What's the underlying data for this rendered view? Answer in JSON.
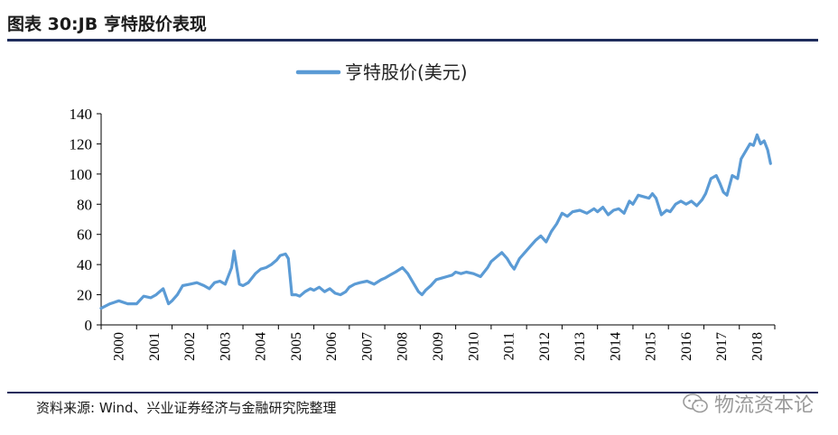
{
  "header": {
    "title": "图表 30:JB 亨特股价表现"
  },
  "footer": {
    "source": "资料来源: Wind、兴业证券经济与金融研究院整理"
  },
  "watermark": {
    "text": "物流资本论",
    "icon": "wechat-icon"
  },
  "chart_data": {
    "type": "line",
    "title": "",
    "xlabel": "",
    "ylabel": "",
    "ylim": [
      0,
      140
    ],
    "yticks": [
      0,
      20,
      40,
      60,
      80,
      100,
      120,
      140
    ],
    "xlim": [
      2000,
      2019
    ],
    "xticks": [
      "2000",
      "2001",
      "2002",
      "2003",
      "2004",
      "2005",
      "2006",
      "2007",
      "2008",
      "2009",
      "2010",
      "2011",
      "2012",
      "2013",
      "2014",
      "2015",
      "2016",
      "2017",
      "2018"
    ],
    "legend_position": "top-center",
    "grid": false,
    "colors": {
      "series": "#5b9bd5",
      "axis": "#000000"
    },
    "series": [
      {
        "name": "亨特股价(美元)",
        "x": [
          2000.0,
          2000.25,
          2000.5,
          2000.75,
          2001.0,
          2001.2,
          2001.4,
          2001.55,
          2001.65,
          2001.75,
          2001.9,
          2002.0,
          2002.15,
          2002.3,
          2002.5,
          2002.7,
          2002.9,
          2003.05,
          2003.2,
          2003.35,
          2003.5,
          2003.6,
          2003.68,
          2003.75,
          2003.9,
          2004.0,
          2004.15,
          2004.35,
          2004.5,
          2004.65,
          2004.8,
          2004.95,
          2005.05,
          2005.2,
          2005.28,
          2005.38,
          2005.5,
          2005.6,
          2005.75,
          2005.9,
          2006.0,
          2006.15,
          2006.3,
          2006.45,
          2006.6,
          2006.75,
          2006.9,
          2007.0,
          2007.15,
          2007.3,
          2007.5,
          2007.7,
          2007.9,
          2008.0,
          2008.15,
          2008.3,
          2008.5,
          2008.65,
          2008.8,
          2008.95,
          2009.05,
          2009.15,
          2009.3,
          2009.45,
          2009.6,
          2009.75,
          2009.9,
          2010.0,
          2010.15,
          2010.3,
          2010.5,
          2010.7,
          2010.9,
          2011.0,
          2011.15,
          2011.3,
          2011.45,
          2011.55,
          2011.65,
          2011.8,
          2011.95,
          2012.1,
          2012.25,
          2012.4,
          2012.55,
          2012.7,
          2012.85,
          2013.0,
          2013.15,
          2013.3,
          2013.5,
          2013.7,
          2013.9,
          2014.0,
          2014.15,
          2014.3,
          2014.45,
          2014.6,
          2014.75,
          2014.9,
          2015.0,
          2015.15,
          2015.3,
          2015.45,
          2015.55,
          2015.65,
          2015.8,
          2015.95,
          2016.05,
          2016.2,
          2016.35,
          2016.5,
          2016.65,
          2016.8,
          2016.95,
          2017.05,
          2017.2,
          2017.35,
          2017.45,
          2017.55,
          2017.65,
          2017.8,
          2017.95,
          2018.05,
          2018.2,
          2018.3,
          2018.4,
          2018.5,
          2018.6,
          2018.7,
          2018.8,
          2018.88
        ],
        "y": [
          11,
          14,
          16,
          14,
          14,
          19,
          18,
          20,
          22,
          24,
          14,
          16,
          20,
          26,
          27,
          28,
          26,
          24,
          28,
          29,
          27,
          33,
          38,
          49,
          27,
          26,
          28,
          34,
          37,
          38,
          40,
          43,
          46,
          47,
          44,
          20,
          20,
          19,
          22,
          24,
          23,
          25,
          22,
          24,
          21,
          20,
          22,
          25,
          27,
          28,
          29,
          27,
          30,
          31,
          33,
          35,
          38,
          34,
          28,
          22,
          20,
          23,
          26,
          30,
          31,
          32,
          33,
          35,
          34,
          35,
          34,
          32,
          38,
          42,
          45,
          48,
          44,
          40,
          37,
          44,
          48,
          52,
          56,
          59,
          55,
          62,
          67,
          74,
          72,
          75,
          76,
          74,
          77,
          75,
          78,
          73,
          76,
          77,
          74,
          82,
          80,
          86,
          85,
          84,
          87,
          84,
          73,
          76,
          75,
          80,
          82,
          80,
          82,
          79,
          83,
          87,
          97,
          99,
          94,
          88,
          86,
          99,
          97,
          110,
          116,
          120,
          119,
          126,
          120,
          122,
          116,
          107
        ]
      }
    ]
  }
}
